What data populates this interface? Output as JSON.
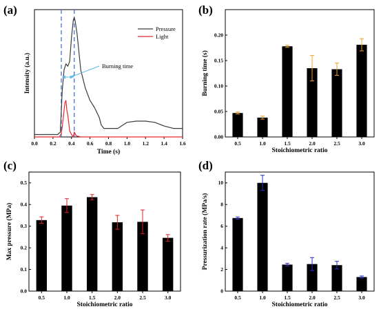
{
  "chart_data": [
    {
      "panel": "(a)",
      "type": "line",
      "xlabel": "Time (s)",
      "ylabel": "Intensity (a.u.)",
      "xlim": [
        0.0,
        1.6
      ],
      "xticks": [
        "0.0",
        "0.2",
        "0.4",
        "0.6",
        "0.8",
        "1.0",
        "1.2",
        "1.4",
        "1.6"
      ],
      "yticks_shown": false,
      "legend_position": "top-right",
      "annotation": "Burning time",
      "dashed_lines_x": [
        0.29,
        0.43
      ],
      "colors": {
        "Pressure": "#3a3a3a",
        "Light": "#e8282b",
        "dashed": "#4a6fe0",
        "arrow": "#5bb6e0"
      },
      "series": [
        {
          "name": "Pressure",
          "x": [
            0.0,
            0.25,
            0.28,
            0.3,
            0.32,
            0.34,
            0.36,
            0.38,
            0.4,
            0.42,
            0.43,
            0.44,
            0.46,
            0.48,
            0.5,
            0.55,
            0.6,
            0.65,
            0.7,
            0.72,
            0.75,
            0.8,
            0.9,
            1.0,
            1.1,
            1.2,
            1.3,
            1.4,
            1.5,
            1.6
          ],
          "y": [
            0.02,
            0.02,
            0.04,
            0.38,
            0.55,
            0.6,
            0.58,
            0.62,
            0.82,
            0.96,
            0.98,
            0.95,
            0.85,
            0.7,
            0.55,
            0.4,
            0.3,
            0.24,
            0.16,
            0.1,
            0.07,
            0.07,
            0.07,
            0.12,
            0.13,
            0.13,
            0.12,
            0.09,
            0.07,
            0.07
          ]
        },
        {
          "name": "Light",
          "x": [
            0.0,
            0.27,
            0.29,
            0.3,
            0.31,
            0.32,
            0.33,
            0.34,
            0.35,
            0.36,
            0.37,
            0.38,
            0.4,
            0.42,
            0.43,
            0.45,
            0.5,
            0.6,
            0.8,
            1.0,
            1.2,
            1.4,
            1.6
          ],
          "y": [
            0.0,
            0.0,
            0.03,
            0.08,
            0.15,
            0.22,
            0.28,
            0.3,
            0.22,
            0.18,
            0.12,
            0.05,
            0.02,
            0.0,
            0.04,
            0.01,
            0.0,
            0.0,
            0.0,
            0.0,
            0.0,
            0.0,
            0.0
          ]
        }
      ]
    },
    {
      "panel": "(b)",
      "type": "bar",
      "xlabel": "Stoichiometric ratio",
      "ylabel": "Burning time (s)",
      "categories": [
        "0.5",
        "1.0",
        "1.5",
        "2.0",
        "2.5",
        "3.0"
      ],
      "values": [
        0.047,
        0.038,
        0.178,
        0.135,
        0.133,
        0.181
      ],
      "errors": [
        0.002,
        0.003,
        0.002,
        0.025,
        0.012,
        0.012
      ],
      "ylim": [
        0.0,
        0.25
      ],
      "yticks": [
        "0.00",
        "0.05",
        "0.10",
        "0.15",
        "0.20"
      ],
      "ytick_values": [
        0.0,
        0.05,
        0.1,
        0.15,
        0.2
      ],
      "bar_color": "#000000",
      "error_color": "#f0a030"
    },
    {
      "panel": "(c)",
      "type": "bar",
      "xlabel": "Stoichiometric ratio",
      "ylabel": "Max pressure (MPa)",
      "categories": [
        "0.5",
        "1.0",
        "1.5",
        "2.0",
        "2.5",
        "3.0"
      ],
      "values": [
        0.328,
        0.395,
        0.434,
        0.318,
        0.32,
        0.246
      ],
      "errors": [
        0.015,
        0.032,
        0.012,
        0.032,
        0.055,
        0.015
      ],
      "ylim": [
        0.0,
        0.55
      ],
      "yticks": [
        "0.0",
        "0.1",
        "0.2",
        "0.3",
        "0.4",
        "0.5"
      ],
      "ytick_values": [
        0.0,
        0.1,
        0.2,
        0.3,
        0.4,
        0.5
      ],
      "bar_color": "#000000",
      "error_color": "#e02020"
    },
    {
      "panel": "(d)",
      "type": "bar",
      "xlabel": "Stoichiometric ratio",
      "ylabel": "Pressurization rate (MPa/s)",
      "categories": [
        "0.5",
        "1.0",
        "1.5",
        "2.0",
        "2.5",
        "3.0"
      ],
      "values": [
        6.75,
        10.0,
        2.45,
        2.5,
        2.4,
        1.3
      ],
      "errors": [
        0.1,
        0.7,
        0.12,
        0.6,
        0.35,
        0.1
      ],
      "ylim": [
        0,
        11
      ],
      "yticks": [
        "0",
        "2",
        "4",
        "6",
        "8",
        "10"
      ],
      "ytick_values": [
        0,
        2,
        4,
        6,
        8,
        10
      ],
      "bar_color": "#000000",
      "error_color": "#2830c8"
    }
  ]
}
